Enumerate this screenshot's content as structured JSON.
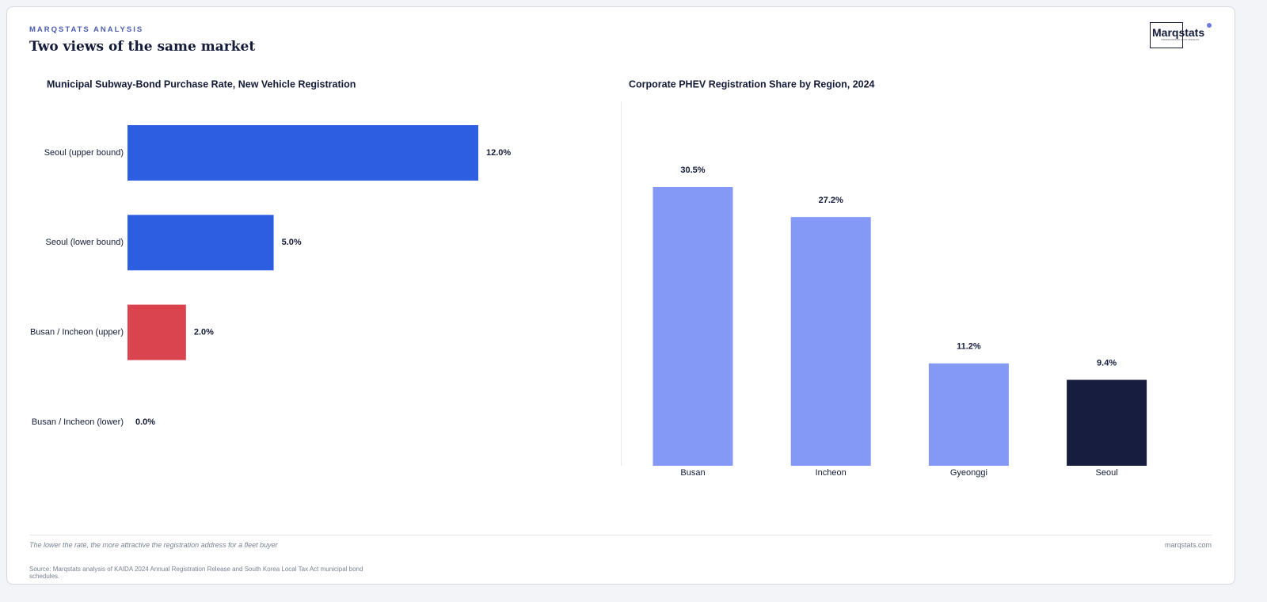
{
  "header": {
    "kicker": "MARQSTATS ANALYSIS",
    "title": "Two views of the same market",
    "logo": "Marqstats",
    "logo_tagline": "TRANSFORMING AUTO INSIGHTS"
  },
  "chart_data": [
    {
      "type": "hbar",
      "title": "Municipal Subway-Bond Purchase Rate, New Vehicle Registration",
      "categories": [
        "Seoul (upper bound)",
        "Seoul (lower bound)",
        "Busan / Incheon (upper)",
        "Busan / Incheon (lower)"
      ],
      "values": [
        12.0,
        5.0,
        2.0,
        0.0
      ],
      "value_labels": [
        "12.0%",
        "5.0%",
        "2.0%",
        "0.0%"
      ],
      "colors": [
        "#2d5de0",
        "#2d5de0",
        "#d9444f",
        "#2d5de0"
      ]
    },
    {
      "type": "bar",
      "title": "Corporate PHEV Registration Share by Region, 2024",
      "categories": [
        "Busan",
        "Incheon",
        "Gyeonggi",
        "Seoul"
      ],
      "values": [
        30.5,
        27.2,
        11.2,
        9.4
      ],
      "value_labels": [
        "30.5%",
        "27.2%",
        "11.2%",
        "9.4%"
      ],
      "colors": [
        "#8499f5",
        "#8499f5",
        "#8499f5",
        "#161d3f"
      ]
    }
  ],
  "footer": {
    "note": "The lower the rate, the more attractive the registration address for a fleet buyer",
    "site": "marqstats.com",
    "source": "Source: Marqstats analysis of KAIDA 2024 Annual Registration Release and South Korea Local Tax Act municipal bond schedules."
  }
}
